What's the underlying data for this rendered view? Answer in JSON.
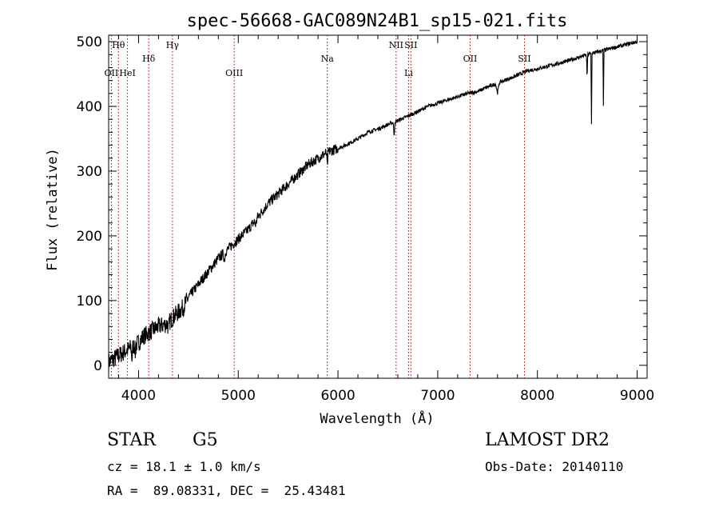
{
  "chart_data": {
    "type": "line",
    "title": "spec-56668-GAC089N24B1_sp15-021.fits",
    "xlabel": "Wavelength (Å)",
    "ylabel": "Flux (relative)",
    "xlim": [
      3700,
      9100
    ],
    "ylim": [
      -20,
      510
    ],
    "xticks": [
      4000,
      5000,
      6000,
      7000,
      8000,
      9000
    ],
    "yticks": [
      0,
      100,
      200,
      300,
      400,
      500
    ],
    "grid": false,
    "series": [
      {
        "x": [
          3700,
          3750,
          3800,
          3850,
          3900,
          3950,
          4000,
          4050,
          4100,
          4150,
          4200,
          4250,
          4300,
          4350,
          4400,
          4450,
          4500,
          4600,
          4700,
          4800,
          4900,
          5000,
          5100,
          5200,
          5300,
          5400,
          5500,
          5600,
          5700,
          5800,
          5900,
          6000,
          6100,
          6200,
          6300,
          6400,
          6500,
          6600,
          6700,
          6800,
          6900,
          7000,
          7100,
          7200,
          7300,
          7400,
          7500,
          7600,
          7700,
          7800,
          7900,
          8000,
          8100,
          8200,
          8300,
          8400,
          8500,
          8600,
          8700,
          8800,
          8900,
          9000
        ],
        "y": [
          5,
          10,
          15,
          20,
          25,
          30,
          35,
          45,
          50,
          55,
          60,
          62,
          65,
          75,
          82,
          90,
          105,
          125,
          145,
          165,
          180,
          195,
          210,
          230,
          250,
          265,
          280,
          295,
          310,
          320,
          330,
          335,
          342,
          350,
          360,
          365,
          372,
          378,
          385,
          392,
          400,
          405,
          410,
          415,
          420,
          423,
          430,
          436,
          442,
          448,
          455,
          458,
          462,
          466,
          470,
          475,
          480,
          484,
          488,
          492,
          496,
          500
        ]
      }
    ],
    "lines": [
      {
        "name": "Hθ",
        "x": 3798,
        "row": "upper"
      },
      {
        "name": "OII",
        "x": 3727,
        "row": "lower"
      },
      {
        "name": "HeI",
        "x": 3889,
        "row": "lower"
      },
      {
        "name": "Hδ",
        "x": 4102,
        "row": "middle"
      },
      {
        "name": "Hγ",
        "x": 4340,
        "row": "upper"
      },
      {
        "name": "OIII",
        "x": 4959,
        "row": "lower"
      },
      {
        "name": "Na",
        "x": 5893,
        "row": "middle"
      },
      {
        "name": "NII",
        "x": 6583,
        "row": "upper"
      },
      {
        "name": "Li",
        "x": 6708,
        "row": "lower"
      },
      {
        "name": "SII",
        "x": 6731,
        "row": "upper"
      },
      {
        "name": "OII",
        "x": 7325,
        "row": "middle"
      },
      {
        "name": "SII",
        "x": 7870,
        "row": "middle"
      }
    ]
  },
  "info": {
    "class": "STAR",
    "subclass": "G5",
    "survey": "LAMOST DR2",
    "cz": "cz = 18.1 ± 1.0 km/s",
    "obs_date": "Obs-Date: 20140110",
    "coords": "RA =  89.08331, DEC =  25.43481"
  }
}
